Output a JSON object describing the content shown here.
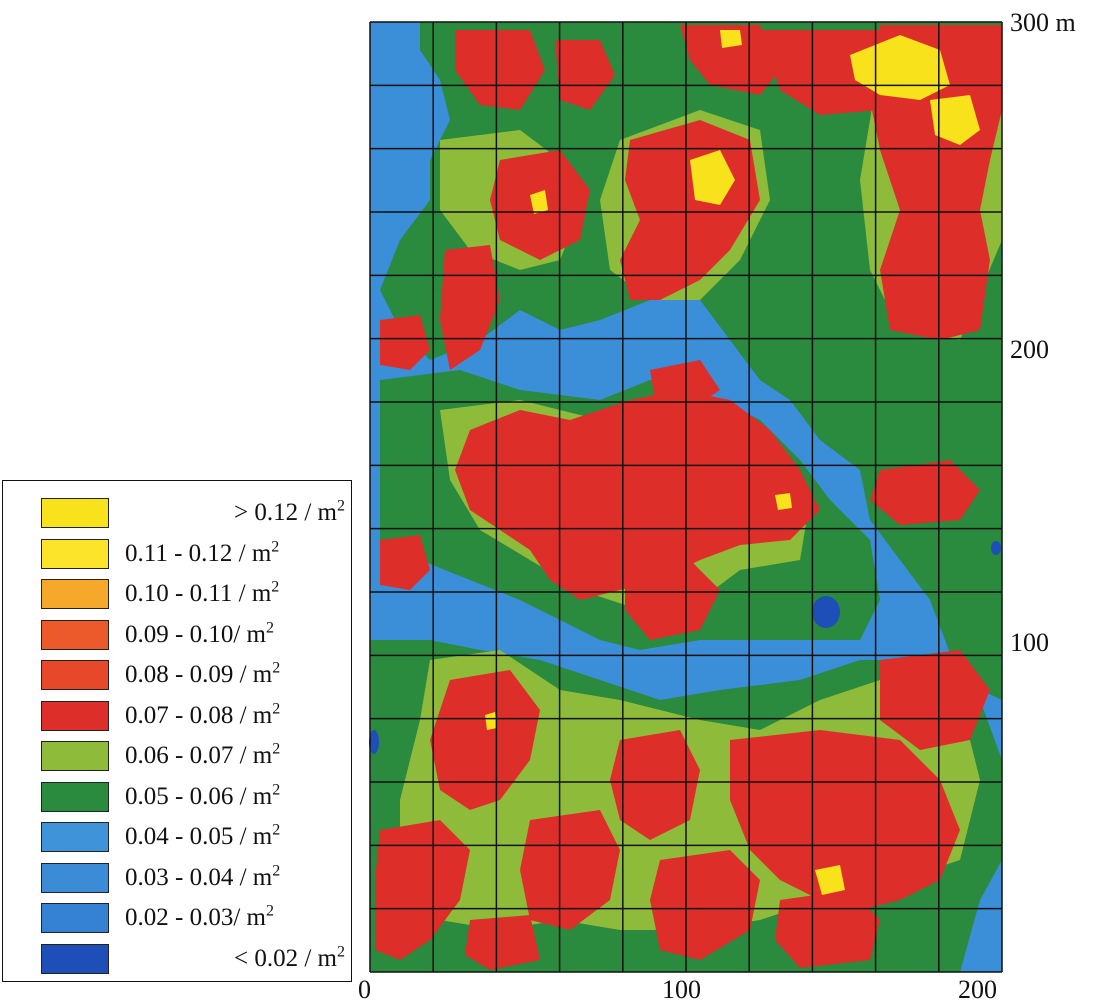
{
  "axes": {
    "x_ticks": [
      "0",
      "100",
      "200"
    ],
    "y_ticks": [
      "300 m",
      "200",
      "100"
    ]
  },
  "legend": {
    "items": [
      {
        "label": "> 0.12 / m",
        "sup": "2",
        "color": "#f7e21c",
        "align": "right"
      },
      {
        "label": "0.11 - 0.12 / m",
        "sup": "2",
        "color": "#fbe42a",
        "align": "left"
      },
      {
        "label": "0.10 - 0.11 / m",
        "sup": "2",
        "color": "#f5a82a",
        "align": "left"
      },
      {
        "label": "0.09 - 0.10/ m",
        "sup": "2",
        "color": "#ec5a2c",
        "align": "left"
      },
      {
        "label": "0.08 - 0.09 / m",
        "sup": "2",
        "color": "#e8482a",
        "align": "left"
      },
      {
        "label": "0.07 - 0.08 / m",
        "sup": "2",
        "color": "#de2e2a",
        "align": "left"
      },
      {
        "label": "0.06 - 0.07 / m",
        "sup": "2",
        "color": "#8fbb3a",
        "align": "left"
      },
      {
        "label": "0.05 - 0.06 / m",
        "sup": "2",
        "color": "#2a8a3e",
        "align": "left"
      },
      {
        "label": "0.04 - 0.05 / m",
        "sup": "2",
        "color": "#3f93d8",
        "align": "left"
      },
      {
        "label": "0.03 - 0.04 / m",
        "sup": "2",
        "color": "#3b8bd6",
        "align": "left"
      },
      {
        "label": "0.02 - 0.03/ m",
        "sup": "2",
        "color": "#3581d4",
        "align": "left"
      },
      {
        "label": "< 0.02 / m",
        "sup": "2",
        "color": "#1e4fb8",
        "align": "right"
      }
    ]
  },
  "colors": {
    "blue": "#3b8ed8",
    "green": "#2a8a3e",
    "light_green": "#8fbb3a",
    "red": "#de2e2a",
    "yellow": "#f7e21c",
    "dark_blue": "#1e4fb8",
    "grid": "#111111"
  }
}
